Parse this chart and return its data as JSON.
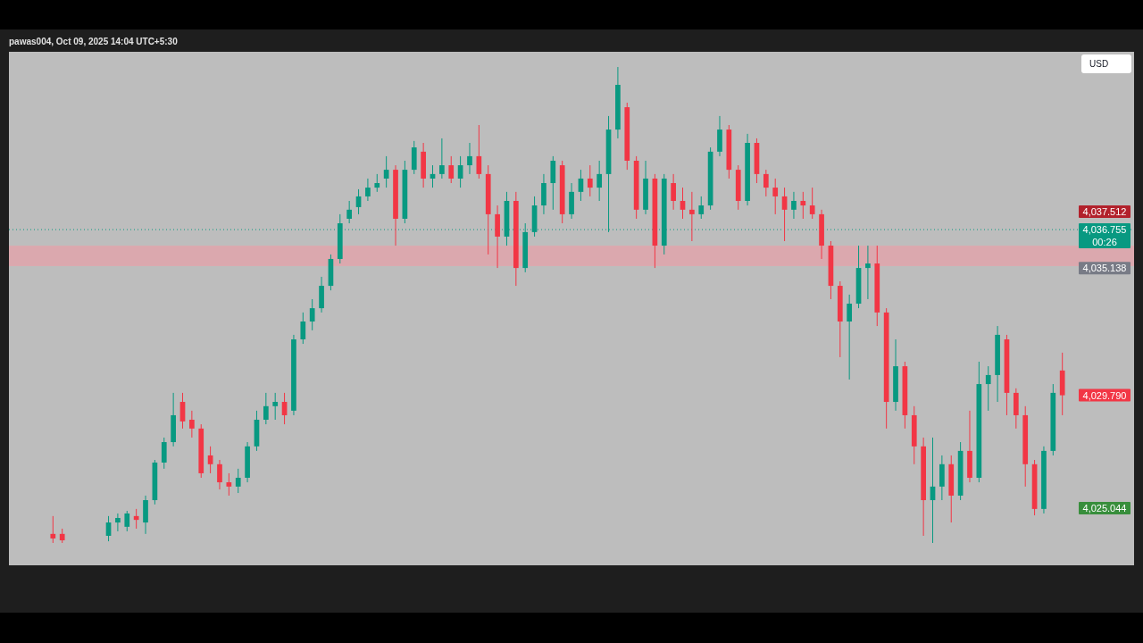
{
  "chart_data": {
    "type": "candlestick",
    "title": "pawas004, Oct 09, 2025 14:04 UTC+5:30",
    "categories": [
      null,
      null,
      null,
      null,
      null,
      null,
      null,
      null,
      null,
      null,
      null,
      null,
      null,
      null,
      null,
      null,
      null,
      null,
      null,
      null,
      null,
      null,
      null,
      null,
      null,
      null,
      null,
      null,
      null,
      null,
      null,
      null,
      null,
      null,
      null,
      null,
      null,
      null,
      null,
      null,
      null,
      null,
      null,
      null,
      null,
      null,
      null,
      null,
      null,
      null,
      null,
      null,
      null,
      null,
      null,
      null,
      null,
      null,
      null,
      null,
      null,
      null,
      null,
      null,
      null,
      null,
      null,
      null,
      null,
      null,
      null,
      null,
      null,
      null,
      null,
      null,
      null,
      null,
      null,
      null,
      null,
      null,
      null,
      null,
      null,
      null,
      null,
      null,
      null,
      null,
      null,
      null,
      null,
      null,
      null,
      null,
      null,
      null,
      null,
      null,
      null,
      null,
      null,
      null,
      null,
      null,
      null,
      null,
      null,
      null
    ],
    "ohlc": [
      [
        4023.96,
        4024.71,
        4023.58,
        4023.77
      ],
      [
        4023.96,
        4024.18,
        4023.58,
        4023.69
      ],
      null,
      null,
      null,
      null,
      [
        4023.88,
        4024.71,
        4023.65,
        4024.44
      ],
      [
        4024.44,
        4024.82,
        4024.07,
        4024.63
      ],
      [
        4024.26,
        4024.93,
        4024.07,
        4024.82
      ],
      [
        4024.71,
        4025.01,
        4024.18,
        4024.55
      ],
      [
        4024.44,
        4025.57,
        4023.96,
        4025.38
      ],
      [
        4025.38,
        4027.07,
        4025.2,
        4026.96
      ],
      [
        4026.96,
        4028.01,
        4026.7,
        4027.82
      ],
      [
        4027.82,
        4029.89,
        4027.64,
        4028.95
      ],
      [
        4029.51,
        4029.89,
        4028.39,
        4028.69
      ],
      [
        4028.76,
        4029.14,
        4028.01,
        4028.39
      ],
      [
        4028.39,
        4028.57,
        4026.32,
        4026.51
      ],
      [
        4027.26,
        4027.64,
        4026.51,
        4026.89
      ],
      [
        4026.89,
        4027.07,
        4025.83,
        4026.13
      ],
      [
        4026.13,
        4026.51,
        4025.57,
        4025.95
      ],
      [
        4025.95,
        4026.7,
        4025.68,
        4026.32
      ],
      [
        4026.32,
        4027.82,
        4026.13,
        4027.64
      ],
      [
        4027.64,
        4029.14,
        4027.45,
        4028.76
      ],
      [
        4028.76,
        4029.89,
        4028.57,
        4029.33
      ],
      [
        4029.33,
        4029.89,
        4028.76,
        4029.51
      ],
      [
        4029.51,
        4029.89,
        4028.57,
        4028.95
      ],
      [
        4029.14,
        4032.33,
        4028.95,
        4032.14
      ],
      [
        4032.14,
        4033.27,
        4031.95,
        4032.89
      ],
      [
        4032.89,
        4033.83,
        4032.52,
        4033.45
      ],
      [
        4033.45,
        4034.77,
        4033.27,
        4034.39
      ],
      [
        4034.39,
        4035.71,
        4034.2,
        4035.52
      ],
      [
        4035.52,
        4037.4,
        4035.33,
        4037.02
      ],
      [
        4037.21,
        4037.96,
        4037.02,
        4037.59
      ],
      [
        4037.7,
        4038.45,
        4037.4,
        4038.15
      ],
      [
        4038.15,
        4038.9,
        4037.96,
        4038.52
      ],
      [
        4038.52,
        4039.09,
        4038.34,
        4038.71
      ],
      [
        4038.9,
        4039.84,
        4038.52,
        4039.27
      ],
      [
        4039.27,
        4039.46,
        4036.08,
        4037.21
      ],
      [
        4037.21,
        4039.65,
        4037.02,
        4039.27
      ],
      [
        4039.27,
        4040.48,
        4039.09,
        4040.21
      ],
      [
        4040.03,
        4040.4,
        4038.52,
        4038.9
      ],
      [
        4038.9,
        4039.46,
        4038.52,
        4039.09
      ],
      [
        4039.09,
        4040.59,
        4038.9,
        4039.46
      ],
      [
        4039.46,
        4039.84,
        4038.71,
        4038.9
      ],
      [
        4038.9,
        4039.84,
        4038.52,
        4039.46
      ],
      [
        4039.46,
        4040.4,
        4039.09,
        4039.84
      ],
      [
        4039.84,
        4041.15,
        4038.9,
        4039.09
      ],
      [
        4039.09,
        4039.46,
        4035.71,
        4037.4
      ],
      [
        4037.4,
        4037.77,
        4035.14,
        4036.46
      ],
      [
        4036.46,
        4038.34,
        4036.08,
        4037.96
      ],
      [
        4037.96,
        4038.34,
        4034.39,
        4035.14
      ],
      [
        4035.14,
        4037.02,
        4034.96,
        4036.65
      ],
      [
        4036.65,
        4038.15,
        4036.46,
        4037.77
      ],
      [
        4037.77,
        4039.09,
        4037.4,
        4038.71
      ],
      [
        4038.71,
        4039.84,
        4037.59,
        4039.65
      ],
      [
        4039.46,
        4039.65,
        4037.02,
        4037.4
      ],
      [
        4037.4,
        4038.71,
        4037.21,
        4038.34
      ],
      [
        4038.34,
        4039.27,
        4037.96,
        4038.9
      ],
      [
        4038.9,
        4039.46,
        4038.15,
        4038.52
      ],
      [
        4038.52,
        4039.65,
        4037.96,
        4039.09
      ],
      [
        4039.09,
        4041.53,
        4036.65,
        4040.96
      ],
      [
        4040.96,
        4043.59,
        4040.59,
        4042.84
      ],
      [
        4041.9,
        4042.09,
        4039.27,
        4039.65
      ],
      [
        4039.65,
        4039.84,
        4037.21,
        4037.59
      ],
      [
        4037.59,
        4039.65,
        4037.4,
        4038.9
      ],
      [
        4038.9,
        4039.09,
        4035.14,
        4036.08
      ],
      [
        4036.08,
        4039.09,
        4035.71,
        4038.9
      ],
      [
        4038.71,
        4039.09,
        4037.59,
        4037.96
      ],
      [
        4037.96,
        4038.52,
        4037.21,
        4037.59
      ],
      [
        4037.59,
        4038.34,
        4036.27,
        4037.4
      ],
      [
        4037.4,
        4038.15,
        4037.21,
        4037.77
      ],
      [
        4037.77,
        4040.21,
        4037.59,
        4040.03
      ],
      [
        4040.03,
        4041.53,
        4039.84,
        4040.96
      ],
      [
        4040.96,
        4041.15,
        4038.9,
        4039.27
      ],
      [
        4039.27,
        4039.46,
        4037.59,
        4037.96
      ],
      [
        4037.96,
        4040.78,
        4037.77,
        4040.4
      ],
      [
        4040.4,
        4040.59,
        4038.71,
        4039.09
      ],
      [
        4039.09,
        4039.27,
        4038.15,
        4038.52
      ],
      [
        4038.52,
        4038.9,
        4037.4,
        4038.15
      ],
      [
        4038.15,
        4038.52,
        4036.27,
        4037.59
      ],
      [
        4037.59,
        4038.34,
        4037.21,
        4037.96
      ],
      [
        4037.96,
        4038.34,
        4037.21,
        4037.77
      ],
      [
        4037.77,
        4038.52,
        4037.21,
        4037.4
      ],
      [
        4037.4,
        4037.59,
        4035.52,
        4036.08
      ],
      [
        4036.08,
        4036.27,
        4033.83,
        4034.39
      ],
      [
        4034.39,
        4034.58,
        4031.39,
        4032.89
      ],
      [
        4032.89,
        4034.02,
        4030.45,
        4033.64
      ],
      [
        4033.64,
        4036.08,
        4033.45,
        4035.14
      ],
      [
        4035.14,
        4036.08,
        4033.83,
        4035.33
      ],
      [
        4035.33,
        4036.08,
        4032.7,
        4033.27
      ],
      [
        4033.27,
        4033.45,
        4028.39,
        4029.51
      ],
      [
        4029.51,
        4032.14,
        4029.14,
        4031.01
      ],
      [
        4031.01,
        4031.2,
        4028.39,
        4028.95
      ],
      [
        4028.95,
        4029.33,
        4026.89,
        4027.64
      ],
      [
        4027.64,
        4028.01,
        4023.88,
        4025.38
      ],
      [
        4025.38,
        4028.01,
        4023.58,
        4025.95
      ],
      [
        4025.95,
        4027.26,
        4025.38,
        4026.89
      ],
      [
        4026.89,
        4027.26,
        4024.44,
        4025.57
      ],
      [
        4025.57,
        4027.82,
        4025.38,
        4027.45
      ],
      [
        4027.45,
        4029.14,
        4026.13,
        4026.32
      ],
      [
        4026.32,
        4031.2,
        4026.13,
        4030.26
      ],
      [
        4030.26,
        4031.01,
        4029.14,
        4030.64
      ],
      [
        4030.64,
        4032.7,
        4029.51,
        4032.33
      ],
      [
        4032.14,
        4032.33,
        4028.95,
        4029.89
      ],
      [
        4029.89,
        4030.08,
        4028.39,
        4028.95
      ],
      [
        4028.95,
        4029.33,
        4025.95,
        4026.89
      ],
      [
        4026.89,
        4027.07,
        4024.74,
        4025.01
      ],
      [
        4025.01,
        4027.64,
        4024.82,
        4027.45
      ],
      [
        4027.45,
        4030.26,
        4027.26,
        4029.89
      ],
      [
        4030.83,
        4031.58,
        4028.95,
        4029.79
      ]
    ],
    "ylim": [
      4022.64,
      4044.23
    ],
    "yticks": [
      {
        "value": 4037.512,
        "label": "4,037.512"
      },
      {
        "value": 4036.755,
        "label": "4,036.755"
      },
      {
        "value": 4035.138,
        "label": "4,035.138"
      },
      {
        "value": 4029.79,
        "label": "4,029.790"
      },
      {
        "value": 4025.044,
        "label": "4,025.044"
      }
    ],
    "bands": [
      {
        "axis": "y",
        "from": 4035.22,
        "to": 4036.08,
        "color": "#e8a0a8"
      }
    ],
    "ref_lines": [
      {
        "axis": "y",
        "value": 4036.755,
        "color": "#089981",
        "line_style": "dotted"
      }
    ],
    "annotations": [
      "USD",
      "00:26"
    ]
  }
}
